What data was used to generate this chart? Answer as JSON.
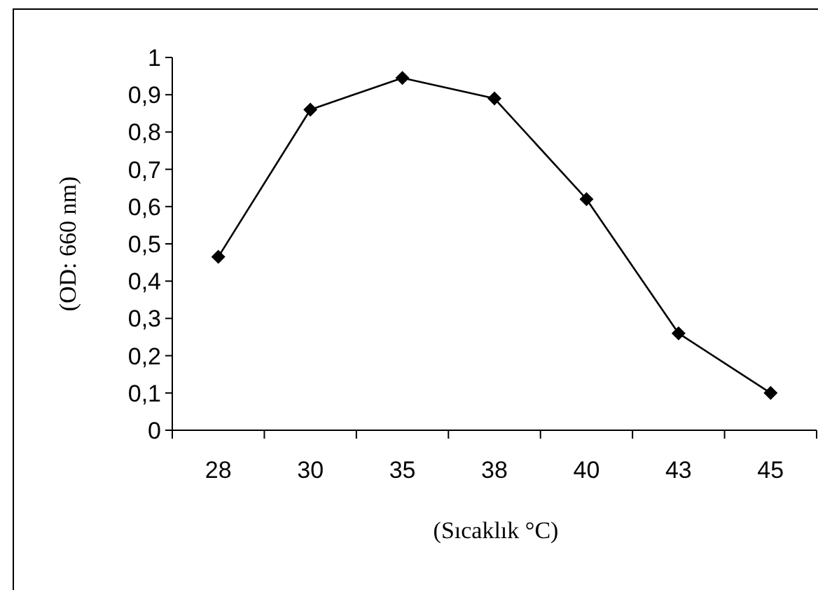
{
  "chart_data": {
    "type": "line",
    "xlabel": "(Sıcaklık  °C)",
    "ylabel": "(OD: 660 nm)",
    "categories": [
      "28",
      "30",
      "35",
      "38",
      "40",
      "43",
      "45"
    ],
    "series": [
      {
        "color": "#000000",
        "values": [
          0.465,
          0.86,
          0.945,
          0.89,
          0.62,
          0.26,
          0.1
        ]
      }
    ],
    "ylim": [
      0,
      1
    ],
    "yticks": [
      0,
      {
        "value": 0.1,
        "label": "0,1"
      },
      {
        "value": 0.2,
        "label": "0,2"
      },
      {
        "value": 0.3,
        "label": "0,3"
      },
      {
        "value": 0.4,
        "label": "0,4"
      },
      {
        "value": 0.5,
        "label": "0,5"
      },
      {
        "value": 0.6,
        "label": "0,6"
      },
      {
        "value": 0.7,
        "label": "0,7"
      },
      {
        "value": 0.8,
        "label": "0,8"
      },
      {
        "value": 0.9,
        "label": "0,9"
      },
      1
    ],
    "marker": "diamond",
    "line_style": "solid"
  }
}
